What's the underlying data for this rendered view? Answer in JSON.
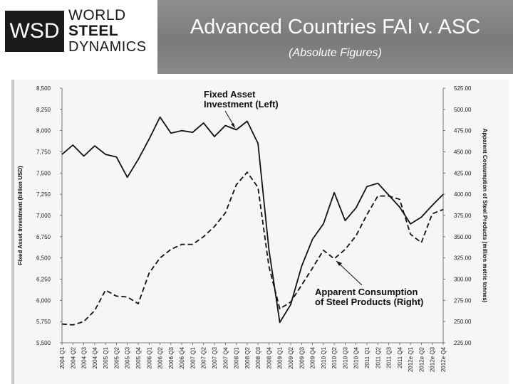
{
  "header": {
    "logo_abbr": "WSD",
    "logo_line1": "WORLD",
    "logo_line2": "STEEL",
    "logo_line3": "DYNAMICS",
    "title": "Advanced Countries FAI v. ASC",
    "subtitle": "(Absolute Figures)"
  },
  "chart_data": {
    "type": "line",
    "title": "",
    "categories": [
      "2004 Q1",
      "2004 Q2",
      "2004 Q3",
      "2004 Q4",
      "2005 Q1",
      "2005 Q2",
      "2005 Q3",
      "2005 Q4",
      "2006 Q1",
      "2006 Q2",
      "2006 Q3",
      "2006 Q4",
      "2007 Q1",
      "2007 Q2",
      "2007 Q3",
      "2007 Q4",
      "2008 Q1",
      "2008 Q2",
      "2008 Q3",
      "2008 Q4",
      "2009 Q1",
      "2009 Q2",
      "2009 Q3",
      "2009 Q4",
      "2010 Q1",
      "2010 Q2",
      "2010 Q3",
      "2010 Q4",
      "2011 Q1",
      "2011 Q2",
      "2011 Q3",
      "2011 Q4",
      "2012e Q1",
      "2012e Q2",
      "2012e Q3",
      "2012e Q4"
    ],
    "ylabel_left": "Fixed Asset Investment (billion USD)",
    "ylabel_right": "Apparent Consumption of Steel Products (million metric tonnes)",
    "ylim_left": [
      5500,
      8500
    ],
    "ylim_right": [
      225,
      525
    ],
    "yticks_left": [
      "5,500",
      "5,750",
      "6,000",
      "6,250",
      "6,500",
      "6,750",
      "7,000",
      "7,250",
      "7,500",
      "7,750",
      "8,000",
      "8,250",
      "8,500"
    ],
    "yticks_right": [
      "225.00",
      "250.00",
      "275.00",
      "300.00",
      "325.00",
      "350.00",
      "375.00",
      "400.00",
      "425.00",
      "450.00",
      "475.00",
      "500.00",
      "525.00"
    ],
    "grid": false,
    "series": [
      {
        "name": "Fixed Asset Investment (Left)",
        "axis": "left",
        "style": "solid",
        "values": [
          7720,
          7830,
          7700,
          7820,
          7720,
          7690,
          7450,
          7660,
          7900,
          8160,
          7970,
          8000,
          7980,
          8090,
          7930,
          8060,
          8010,
          8110,
          7850,
          6600,
          5740,
          5950,
          6400,
          6720,
          6900,
          7270,
          6940,
          7090,
          7340,
          7380,
          7240,
          7100,
          6900,
          6980,
          7120,
          7250
        ]
      },
      {
        "name": "Apparent Consumption of Steel Products (Right)",
        "axis": "right",
        "style": "dashed",
        "values": [
          247,
          246,
          250,
          263,
          287,
          280,
          279,
          271,
          307,
          325,
          335,
          341,
          341,
          350,
          362,
          378,
          411,
          426,
          408,
          315,
          265,
          273,
          293,
          313,
          334,
          324,
          335,
          351,
          376,
          398,
          398,
          394,
          353,
          343,
          377,
          382
        ]
      }
    ],
    "annotations": [
      {
        "text": "Fixed Asset Investment (Left)",
        "series": 0
      },
      {
        "text": "Apparent Consumption of Steel Products (Right)",
        "series": 1
      }
    ]
  },
  "colors": {
    "line": "#111111",
    "banner": "#858585",
    "logo_bg": "#1a1a1a"
  }
}
